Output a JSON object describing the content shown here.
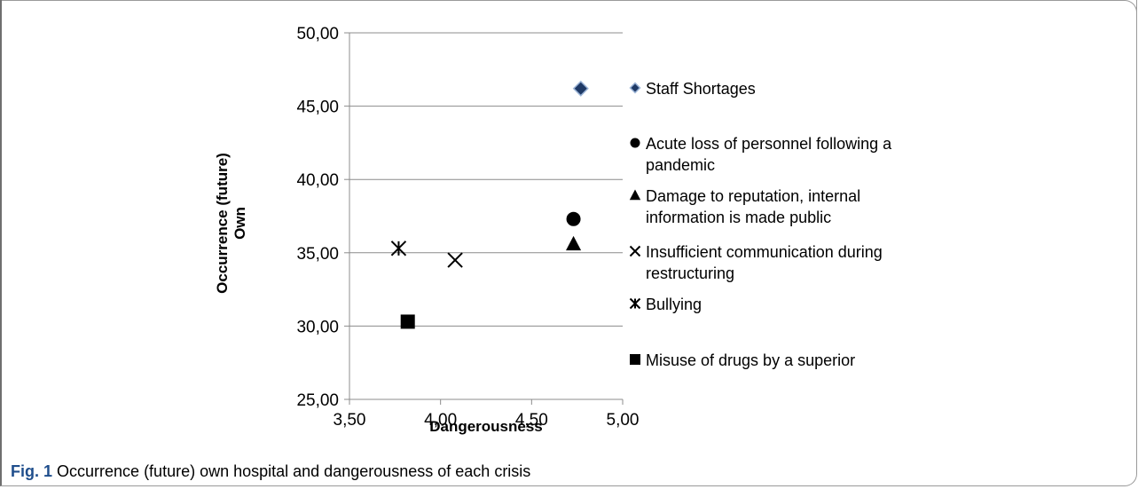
{
  "caption": {
    "label": "Fig. 1",
    "text": "Occurrence (future) own hospital and dangerousness of each crisis"
  },
  "chart_data": {
    "type": "scatter",
    "xlabel": "Dangerousness",
    "ylabel_lines": [
      "Occurrence (future)",
      "Own"
    ],
    "xlim": [
      3.5,
      5.0
    ],
    "ylim": [
      25.0,
      50.0
    ],
    "xticks": [
      "3,50",
      "4,00",
      "4,50",
      "5,00"
    ],
    "yticks": [
      "25,00",
      "30,00",
      "35,00",
      "40,00",
      "45,00",
      "50,00"
    ],
    "grid": "horizontal",
    "legend_position": "right",
    "series": [
      {
        "name": "Staff Shortages",
        "marker": "diamond",
        "x": [
          4.77
        ],
        "y": [
          46.2
        ],
        "color": "#1f3a66",
        "legend_lines": [
          "Staff Shortages"
        ]
      },
      {
        "name": "Acute loss of personnel following a pandemic",
        "marker": "circle",
        "x": [
          4.73
        ],
        "y": [
          37.3
        ],
        "color": "#000000",
        "legend_lines": [
          "Acute loss of personnel following a",
          "pandemic"
        ]
      },
      {
        "name": "Damage to reputation, internal information is made public",
        "marker": "triangle",
        "x": [
          4.73
        ],
        "y": [
          35.6
        ],
        "color": "#000000",
        "legend_lines": [
          "Damage to reputation, internal",
          "information is made public"
        ]
      },
      {
        "name": "Insufficient communication during restructuring",
        "marker": "x",
        "x": [
          4.08
        ],
        "y": [
          34.5
        ],
        "color": "#000000",
        "legend_lines": [
          "Insufficient communication during",
          "restructuring"
        ]
      },
      {
        "name": "Bullying",
        "marker": "star",
        "x": [
          3.77
        ],
        "y": [
          35.3
        ],
        "color": "#000000",
        "legend_lines": [
          "Bullying"
        ]
      },
      {
        "name": "Misuse of drugs by a superior",
        "marker": "square",
        "x": [
          3.82
        ],
        "y": [
          30.3
        ],
        "color": "#000000",
        "legend_lines": [
          "Misuse of drugs by a superior"
        ]
      }
    ]
  }
}
